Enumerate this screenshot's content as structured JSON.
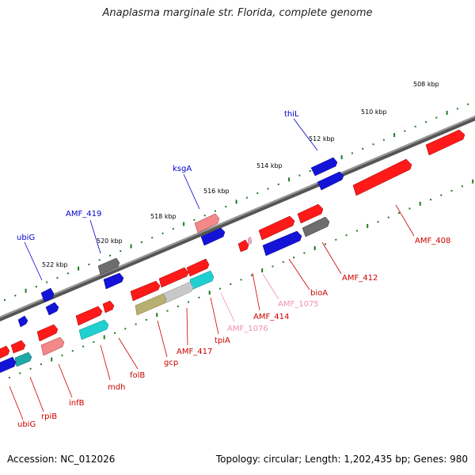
{
  "header": {
    "title": "Anaplasma marginale str. Florida, complete genome"
  },
  "footer": {
    "accession": "Accession: NC_012026",
    "summary": "Topology: circular; Length: 1,202,435 bp; Genes: 980"
  },
  "colors": {
    "backbone": "#8a8a8a",
    "tick": "#1e7a1e",
    "red": "#ff1a1a",
    "pink": "#f08a8a",
    "blue": "#1010e0",
    "gray": "#6e6e6e",
    "cyan": "#20d0d0",
    "olive": "#b8b070",
    "silver": "#c8c8c8",
    "label_red": "#cc0000",
    "label_pink": "#f090b0",
    "label_blue": "#0000cc"
  },
  "scale_labels": [
    "508 kbp",
    "510 kbp",
    "512 kbp",
    "514 kbp",
    "516 kbp",
    "518 kbp",
    "520 kbp",
    "522 kbp"
  ],
  "gene_labels": [
    {
      "text": "thiL",
      "color": "label_blue"
    },
    {
      "text": "ksgA",
      "color": "label_blue"
    },
    {
      "text": "AMF_419",
      "color": "label_blue"
    },
    {
      "text": "ubiG",
      "color": "label_blue"
    },
    {
      "text": "AMF_408",
      "color": "label_red"
    },
    {
      "text": "AMF_412",
      "color": "label_red"
    },
    {
      "text": "bioA",
      "color": "label_red"
    },
    {
      "text": "AMF_1075",
      "color": "label_pink"
    },
    {
      "text": "AMF_414",
      "color": "label_red"
    },
    {
      "text": "AMF_1076",
      "color": "label_pink"
    },
    {
      "text": "tpiA",
      "color": "label_red"
    },
    {
      "text": "AMF_417",
      "color": "label_red"
    },
    {
      "text": "gcp",
      "color": "label_red"
    },
    {
      "text": "folB",
      "color": "label_red"
    },
    {
      "text": "mdh",
      "color": "label_red"
    },
    {
      "text": "infB",
      "color": "label_red"
    },
    {
      "text": "rpiB",
      "color": "label_red"
    },
    {
      "text": "ubiG",
      "color": "label_red"
    }
  ]
}
